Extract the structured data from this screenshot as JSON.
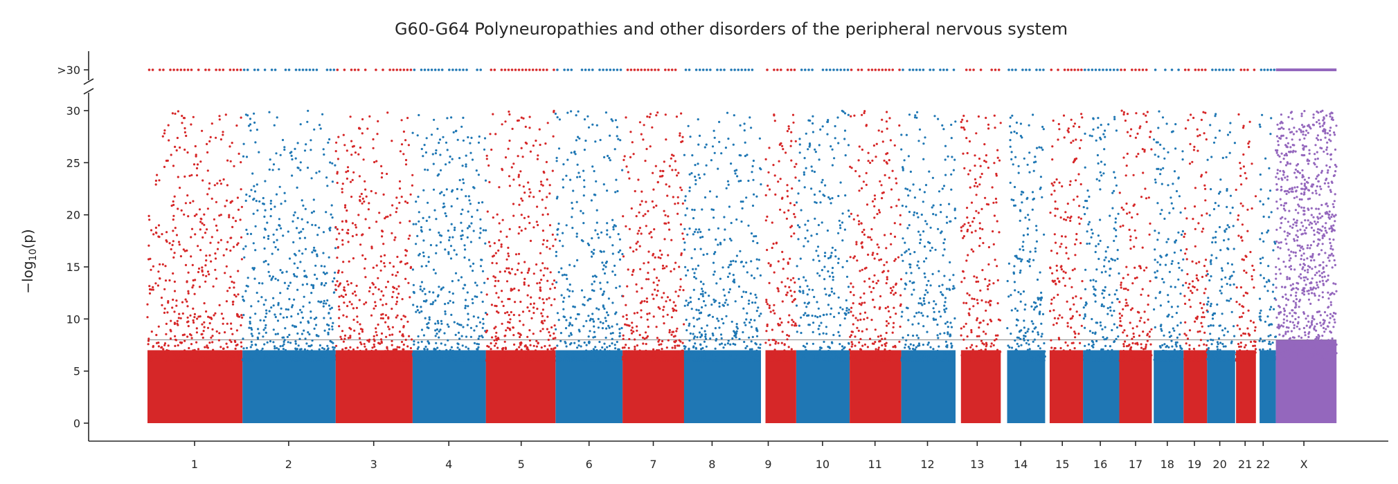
{
  "chart_data": {
    "type": "scatter",
    "title": "G60-G64 Polyneuropathies and other disorders of the peripheral nervous system",
    "ylabel": "−log10(p)",
    "xlabel": "",
    "ylim": [
      0,
      30
    ],
    "overflow_tick": ">30",
    "yticks": [
      0,
      5,
      10,
      15,
      20,
      25,
      30
    ],
    "significance_line": 8,
    "grid": false,
    "colors": {
      "odd": "#d62728",
      "even": "#1f77b4",
      "x": "#9467bd",
      "line": "#888888"
    },
    "chromosomes": [
      {
        "label": "1",
        "color": "odd"
      },
      {
        "label": "2",
        "color": "even"
      },
      {
        "label": "3",
        "color": "odd"
      },
      {
        "label": "4",
        "color": "even"
      },
      {
        "label": "5",
        "color": "odd"
      },
      {
        "label": "6",
        "color": "even"
      },
      {
        "label": "7",
        "color": "odd"
      },
      {
        "label": "8",
        "color": "even"
      },
      {
        "label": "9",
        "color": "odd"
      },
      {
        "label": "10",
        "color": "even"
      },
      {
        "label": "11",
        "color": "odd"
      },
      {
        "label": "12",
        "color": "even"
      },
      {
        "label": "13",
        "color": "odd"
      },
      {
        "label": "14",
        "color": "even"
      },
      {
        "label": "15",
        "color": "odd"
      },
      {
        "label": "16",
        "color": "even"
      },
      {
        "label": "17",
        "color": "odd"
      },
      {
        "label": "18",
        "color": "even"
      },
      {
        "label": "19",
        "color": "odd"
      },
      {
        "label": "20",
        "color": "even"
      },
      {
        "label": "21",
        "color": "odd"
      },
      {
        "label": "22",
        "color": "even"
      },
      {
        "label": "X",
        "color": "x"
      }
    ]
  }
}
